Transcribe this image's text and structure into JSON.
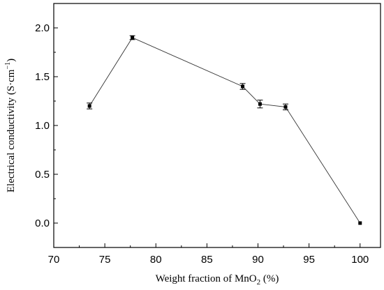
{
  "chart_data": {
    "type": "line",
    "title": "",
    "xlabel": "Weight fraction of MnO₂ (%)",
    "ylabel": "Electrical conductivity (S·cm⁻¹)",
    "xlim": [
      70,
      102
    ],
    "ylim": [
      -0.25,
      2.25
    ],
    "x_ticks": [
      70,
      75,
      80,
      85,
      90,
      95,
      100
    ],
    "x_tick_labels": [
      "70",
      "75",
      "80",
      "85",
      "90",
      "95",
      "100"
    ],
    "y_ticks": [
      0.0,
      0.5,
      1.0,
      1.5,
      2.0
    ],
    "y_tick_labels": [
      "0.0",
      "0.5",
      "1.0",
      "1.5",
      "2.0"
    ],
    "grid": false,
    "series": [
      {
        "x": [
          73.5,
          77.7,
          88.5,
          90.2,
          92.7,
          100
        ],
        "values": [
          1.2,
          1.9,
          1.4,
          1.22,
          1.19,
          0.0
        ],
        "error": [
          0.03,
          0.02,
          0.03,
          0.04,
          0.03,
          0.0
        ],
        "color": "#000000",
        "marker": "square"
      }
    ]
  }
}
